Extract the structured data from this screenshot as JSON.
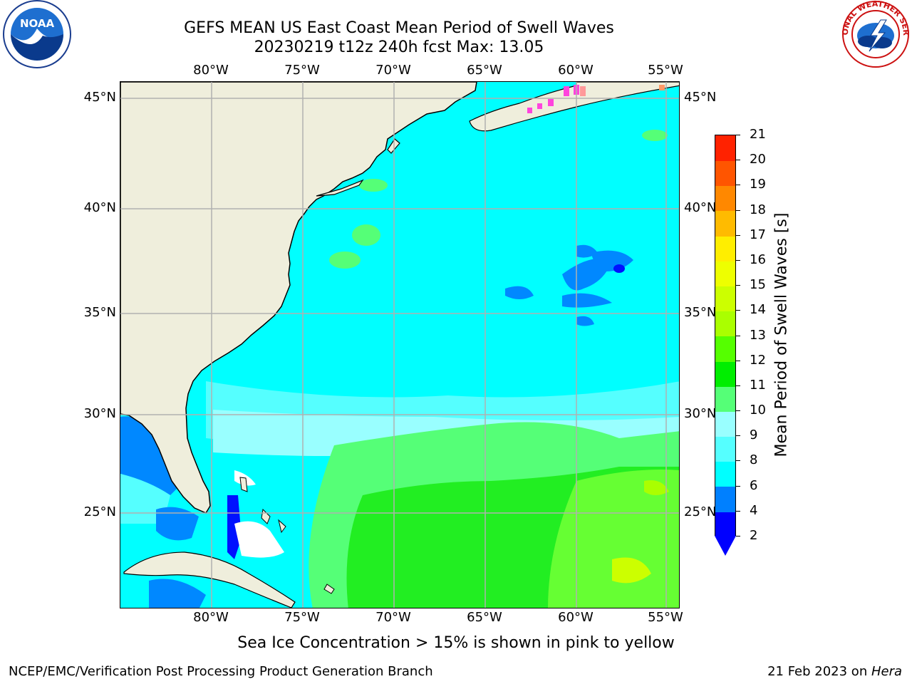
{
  "title": {
    "line1": "GEFS MEAN US East Coast Mean Period of Swell Waves",
    "line2": "20230219 t12z 240h fcst   Max: 13.05"
  },
  "map": {
    "lon_ticks": [
      "80°W",
      "75°W",
      "70°W",
      "65°W",
      "60°W",
      "55°W"
    ],
    "lat_ticks": [
      "45°N",
      "40°N",
      "35°N",
      "30°N",
      "25°N"
    ],
    "land_color": "#efeedc",
    "grid_color": "#b0b0b0",
    "field": [
      {
        "label": "cyan background",
        "color": "#00ffff"
      },
      {
        "label": "light cyan",
        "color": "#55ffff"
      },
      {
        "label": "pale cyan",
        "color": "#99ffff"
      },
      {
        "label": "light green",
        "color": "#55ff77"
      },
      {
        "label": "green",
        "color": "#22ee22"
      },
      {
        "label": "yellow green",
        "color": "#ccff00"
      },
      {
        "label": "blue",
        "color": "#0088ff"
      },
      {
        "label": "dark blue",
        "color": "#0011ff"
      },
      {
        "label": "ice pink",
        "color": "#ff44dd"
      }
    ]
  },
  "colorbar": {
    "label": "Mean Period of Swell Waves [s]",
    "ticks": [
      "2",
      "4",
      "6",
      "8",
      "9",
      "10",
      "11",
      "12",
      "13",
      "14",
      "15",
      "16",
      "17",
      "18",
      "19",
      "20",
      "21"
    ],
    "colors": [
      "#0000ff",
      "#0080ff",
      "#00ffff",
      "#55ffff",
      "#99ffff",
      "#55ff77",
      "#00ee00",
      "#55ff00",
      "#aaff00",
      "#ccff00",
      "#eeff00",
      "#ffee00",
      "#ffbb00",
      "#ff8800",
      "#ff5500",
      "#ff2200",
      "#ff0000"
    ],
    "under_color": "#0000ff"
  },
  "notes": {
    "ice": "Sea Ice Concentration > 15% is shown in pink to yellow"
  },
  "footer": {
    "left": "NCEP/EMC/Verification Post Processing Product Generation Branch",
    "date": "21 Feb 2023 on ",
    "machine": "Hera"
  },
  "logos": {
    "noaa_text": "NOAA",
    "nws_text": "NATIONAL WEATHER SERVICE"
  }
}
